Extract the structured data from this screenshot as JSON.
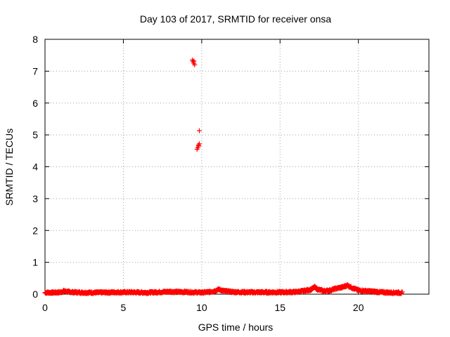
{
  "chart_data": {
    "type": "scatter",
    "title": "Day 103 of 2017, SRMTID for receiver onsa",
    "xlabel": "GPS time / hours",
    "ylabel": "SRMTID / TECUs",
    "xlim": [
      0,
      24.5
    ],
    "ylim": [
      0,
      8
    ],
    "xticks": [
      0,
      5,
      10,
      15,
      20
    ],
    "yticks": [
      0,
      1,
      2,
      3,
      4,
      5,
      6,
      7,
      8
    ],
    "grid": true,
    "marker": "+",
    "series": [
      {
        "name": "SRMTID",
        "color": "#ff0000",
        "baseline_trace": {
          "x": [
            0.0,
            0.5,
            1.0,
            1.2,
            1.4,
            1.8,
            2.5,
            3.5,
            4.5,
            5.0,
            5.5,
            6.5,
            7.5,
            8.0,
            8.5,
            9.0,
            9.5,
            10.0,
            10.5,
            10.8,
            11.1,
            11.4,
            12.0,
            13.0,
            14.0,
            15.0,
            16.0,
            16.5,
            17.0,
            17.2,
            17.4,
            17.8,
            18.2,
            18.6,
            19.0,
            19.3,
            19.6,
            20.0,
            20.5,
            21.0,
            21.5,
            22.0,
            22.5,
            22.8
          ],
          "y": [
            0.05,
            0.05,
            0.06,
            0.1,
            0.08,
            0.06,
            0.05,
            0.05,
            0.06,
            0.06,
            0.06,
            0.05,
            0.07,
            0.08,
            0.07,
            0.07,
            0.06,
            0.05,
            0.07,
            0.1,
            0.15,
            0.1,
            0.07,
            0.06,
            0.06,
            0.06,
            0.07,
            0.1,
            0.15,
            0.22,
            0.15,
            0.1,
            0.12,
            0.18,
            0.22,
            0.28,
            0.2,
            0.12,
            0.1,
            0.08,
            0.06,
            0.05,
            0.05,
            0.04
          ]
        },
        "outliers": [
          {
            "x": 9.4,
            "y": 7.35
          },
          {
            "x": 9.45,
            "y": 7.3
          },
          {
            "x": 9.5,
            "y": 7.25
          },
          {
            "x": 9.55,
            "y": 7.2
          },
          {
            "x": 9.5,
            "y": 7.32
          },
          {
            "x": 9.85,
            "y": 5.13
          },
          {
            "x": 9.85,
            "y": 4.72
          },
          {
            "x": 9.8,
            "y": 4.65
          },
          {
            "x": 9.75,
            "y": 4.6
          },
          {
            "x": 9.7,
            "y": 4.55
          },
          {
            "x": 9.8,
            "y": 4.68
          }
        ]
      }
    ]
  }
}
